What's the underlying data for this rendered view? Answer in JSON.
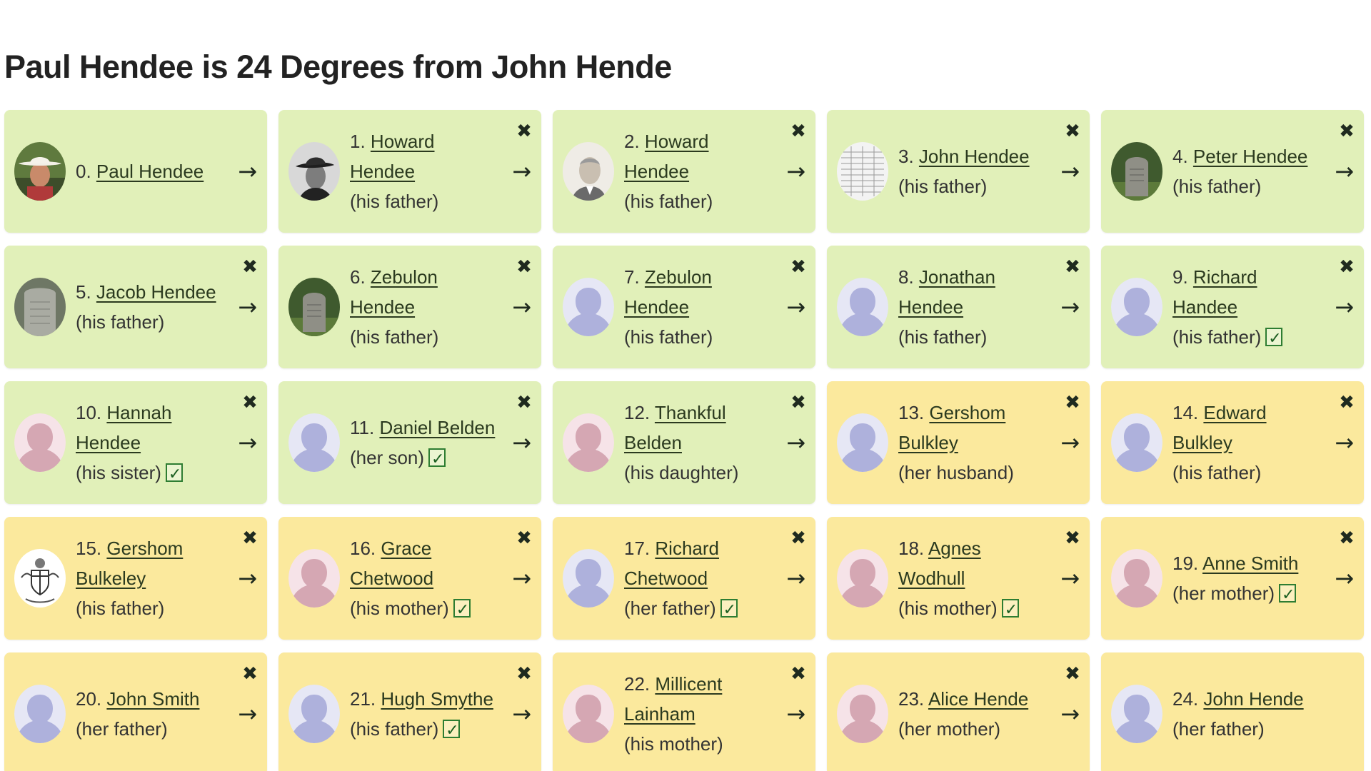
{
  "title": "Paul Hendee is 24 Degrees from John Hende",
  "icons": {
    "close": "✖",
    "arrow": "→",
    "check": "check-icon"
  },
  "colors": {
    "green_card": "#e1f0b9",
    "gold_card": "#fbe99d"
  },
  "people": [
    {
      "num": "0.",
      "name": "Paul Hendee",
      "rel": "",
      "check": false,
      "tone": "green",
      "avatar": "photo-cowboy",
      "close": false
    },
    {
      "num": "1.",
      "name": "Howard Hendee",
      "rel": "(his father)",
      "check": false,
      "tone": "green",
      "avatar": "photo-hat",
      "close": true
    },
    {
      "num": "2.",
      "name": "Howard Hendee",
      "rel": "(his father)",
      "check": false,
      "tone": "green",
      "avatar": "photo-elder",
      "close": true
    },
    {
      "num": "3.",
      "name": "John Hendee",
      "rel": "(his father)",
      "check": false,
      "tone": "green",
      "avatar": "photo-document",
      "close": true
    },
    {
      "num": "4.",
      "name": "Peter Hendee",
      "rel": "(his father)",
      "check": false,
      "tone": "green",
      "avatar": "photo-gravestone",
      "close": true
    },
    {
      "num": "5.",
      "name": "Jacob Hendee",
      "rel": "(his father)",
      "check": false,
      "tone": "green",
      "avatar": "photo-gravestone-gray",
      "close": true
    },
    {
      "num": "6.",
      "name": "Zebulon Hendee",
      "rel": "(his father)",
      "check": false,
      "tone": "green",
      "avatar": "photo-gravestone",
      "close": true
    },
    {
      "num": "7.",
      "name": "Zebulon Hendee",
      "rel": "(his father)",
      "check": false,
      "tone": "green",
      "avatar": "silhouette-male",
      "close": true
    },
    {
      "num": "8.",
      "name": "Jonathan Hendee",
      "rel": "(his father)",
      "check": false,
      "tone": "green",
      "avatar": "silhouette-male",
      "close": true
    },
    {
      "num": "9.",
      "name": "Richard Handee",
      "rel": "(his father)",
      "check": true,
      "tone": "green",
      "avatar": "silhouette-male",
      "close": true
    },
    {
      "num": "10.",
      "name": "Hannah Hendee",
      "rel": "(his sister)",
      "check": true,
      "tone": "green",
      "avatar": "silhouette-female",
      "close": true
    },
    {
      "num": "11.",
      "name": "Daniel Belden",
      "rel": "(her son)",
      "check": true,
      "tone": "green",
      "avatar": "silhouette-male",
      "close": true
    },
    {
      "num": "12.",
      "name": "Thankful Belden",
      "rel": "(his daughter)",
      "check": false,
      "tone": "green",
      "avatar": "silhouette-female",
      "close": true
    },
    {
      "num": "13.",
      "name": "Gershom Bulkley",
      "rel": "(her husband)",
      "check": false,
      "tone": "gold",
      "avatar": "silhouette-male",
      "close": true
    },
    {
      "num": "14.",
      "name": "Edward Bulkley",
      "rel": "(his father)",
      "check": false,
      "tone": "gold",
      "avatar": "silhouette-male",
      "close": true
    },
    {
      "num": "15.",
      "name": "Gershom Bulkeley",
      "rel": "(his father)",
      "check": false,
      "tone": "gold",
      "avatar": "coat-of-arms",
      "close": true
    },
    {
      "num": "16.",
      "name": "Grace Chetwood",
      "rel": "(his mother)",
      "check": true,
      "tone": "gold",
      "avatar": "silhouette-female",
      "close": true
    },
    {
      "num": "17.",
      "name": "Richard Chetwood",
      "rel": "(her father)",
      "check": true,
      "tone": "gold",
      "avatar": "silhouette-male",
      "close": true
    },
    {
      "num": "18.",
      "name": "Agnes Wodhull",
      "rel": "(his mother)",
      "check": true,
      "tone": "gold",
      "avatar": "silhouette-female",
      "close": true
    },
    {
      "num": "19.",
      "name": "Anne Smith",
      "rel": "(her mother)",
      "check": true,
      "tone": "gold",
      "avatar": "silhouette-female",
      "close": true
    },
    {
      "num": "20.",
      "name": "John Smith",
      "rel": "(her father)",
      "check": false,
      "tone": "gold",
      "avatar": "silhouette-male",
      "close": true
    },
    {
      "num": "21.",
      "name": "Hugh Smythe",
      "rel": "(his father)",
      "check": true,
      "tone": "gold",
      "avatar": "silhouette-male",
      "close": true
    },
    {
      "num": "22.",
      "name": "Millicent Lainham",
      "rel": "(his mother)",
      "check": false,
      "tone": "gold",
      "avatar": "silhouette-female",
      "close": true
    },
    {
      "num": "23.",
      "name": "Alice Hende",
      "rel": "(her mother)",
      "check": false,
      "tone": "gold",
      "avatar": "silhouette-female",
      "close": true
    },
    {
      "num": "24.",
      "name": "John Hende",
      "rel": "(her father)",
      "check": false,
      "tone": "gold",
      "avatar": "silhouette-male",
      "close": false
    }
  ]
}
